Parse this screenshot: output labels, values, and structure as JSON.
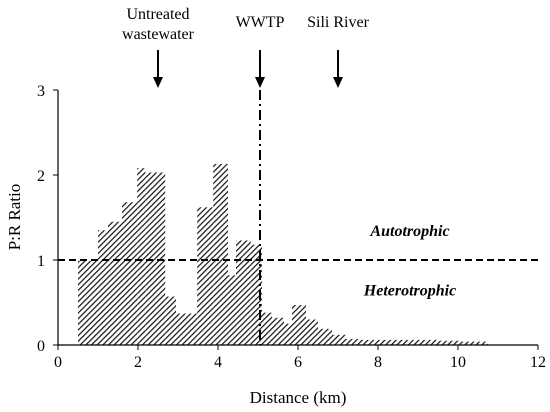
{
  "chart_data": {
    "type": "bar",
    "title": "",
    "xlabel": "Distance (km)",
    "ylabel": "P:R Ratio",
    "xlim": [
      0,
      12
    ],
    "ylim": [
      0,
      3
    ],
    "x_ticks": [
      "0",
      "2",
      "4",
      "6",
      "8",
      "10",
      "12"
    ],
    "y_ticks": [
      "0",
      "1",
      "2",
      "3"
    ],
    "grid": false,
    "bar_fill": "hatched",
    "bars": [
      {
        "x0": 0.5,
        "x1": 1.0,
        "value": 0.99
      },
      {
        "x0": 1.0,
        "x1": 1.25,
        "value": 1.35
      },
      {
        "x0": 1.25,
        "x1": 1.6,
        "value": 1.45
      },
      {
        "x0": 1.6,
        "x1": 1.98,
        "value": 1.68
      },
      {
        "x0": 1.98,
        "x1": 2.18,
        "value": 2.08
      },
      {
        "x0": 2.18,
        "x1": 2.68,
        "value": 2.03
      },
      {
        "x0": 2.68,
        "x1": 2.95,
        "value": 0.57
      },
      {
        "x0": 2.95,
        "x1": 3.48,
        "value": 0.37
      },
      {
        "x0": 3.48,
        "x1": 3.88,
        "value": 1.62
      },
      {
        "x0": 3.88,
        "x1": 4.25,
        "value": 2.13
      },
      {
        "x0": 4.25,
        "x1": 4.45,
        "value": 0.82
      },
      {
        "x0": 4.45,
        "x1": 4.82,
        "value": 1.23
      },
      {
        "x0": 4.82,
        "x1": 5.1,
        "value": 1.18
      },
      {
        "x0": 5.1,
        "x1": 5.35,
        "value": 0.38
      },
      {
        "x0": 5.35,
        "x1": 5.65,
        "value": 0.32
      },
      {
        "x0": 5.65,
        "x1": 5.85,
        "value": 0.25
      },
      {
        "x0": 5.85,
        "x1": 6.2,
        "value": 0.47
      },
      {
        "x0": 6.2,
        "x1": 6.5,
        "value": 0.3
      },
      {
        "x0": 6.5,
        "x1": 6.85,
        "value": 0.19
      },
      {
        "x0": 6.85,
        "x1": 7.2,
        "value": 0.12
      },
      {
        "x0": 7.2,
        "x1": 7.6,
        "value": 0.07
      },
      {
        "x0": 7.6,
        "x1": 8.5,
        "value": 0.06
      },
      {
        "x0": 8.5,
        "x1": 9.5,
        "value": 0.06
      },
      {
        "x0": 9.5,
        "x1": 10.1,
        "value": 0.05
      },
      {
        "x0": 10.1,
        "x1": 10.75,
        "value": 0.04
      }
    ],
    "reference_lines": [
      {
        "orientation": "horizontal",
        "value": 1,
        "style": "dashed"
      },
      {
        "orientation": "vertical",
        "value": 5.05,
        "style": "dash-dot"
      }
    ],
    "region_labels": [
      {
        "text": "Autotrophic",
        "x": 8.8,
        "y": 1.28
      },
      {
        "text": "Heterotrophic",
        "x": 8.8,
        "y": 0.58
      }
    ],
    "site_markers": [
      {
        "text": "Untreated wastewater",
        "lines": [
          "Untreated",
          "wastewater"
        ],
        "x": 2.5
      },
      {
        "text": "WWTP",
        "lines": [
          "WWTP"
        ],
        "x": 5.05
      },
      {
        "text": "Sili River",
        "lines": [
          "Sili River"
        ],
        "x": 7.0
      }
    ]
  }
}
